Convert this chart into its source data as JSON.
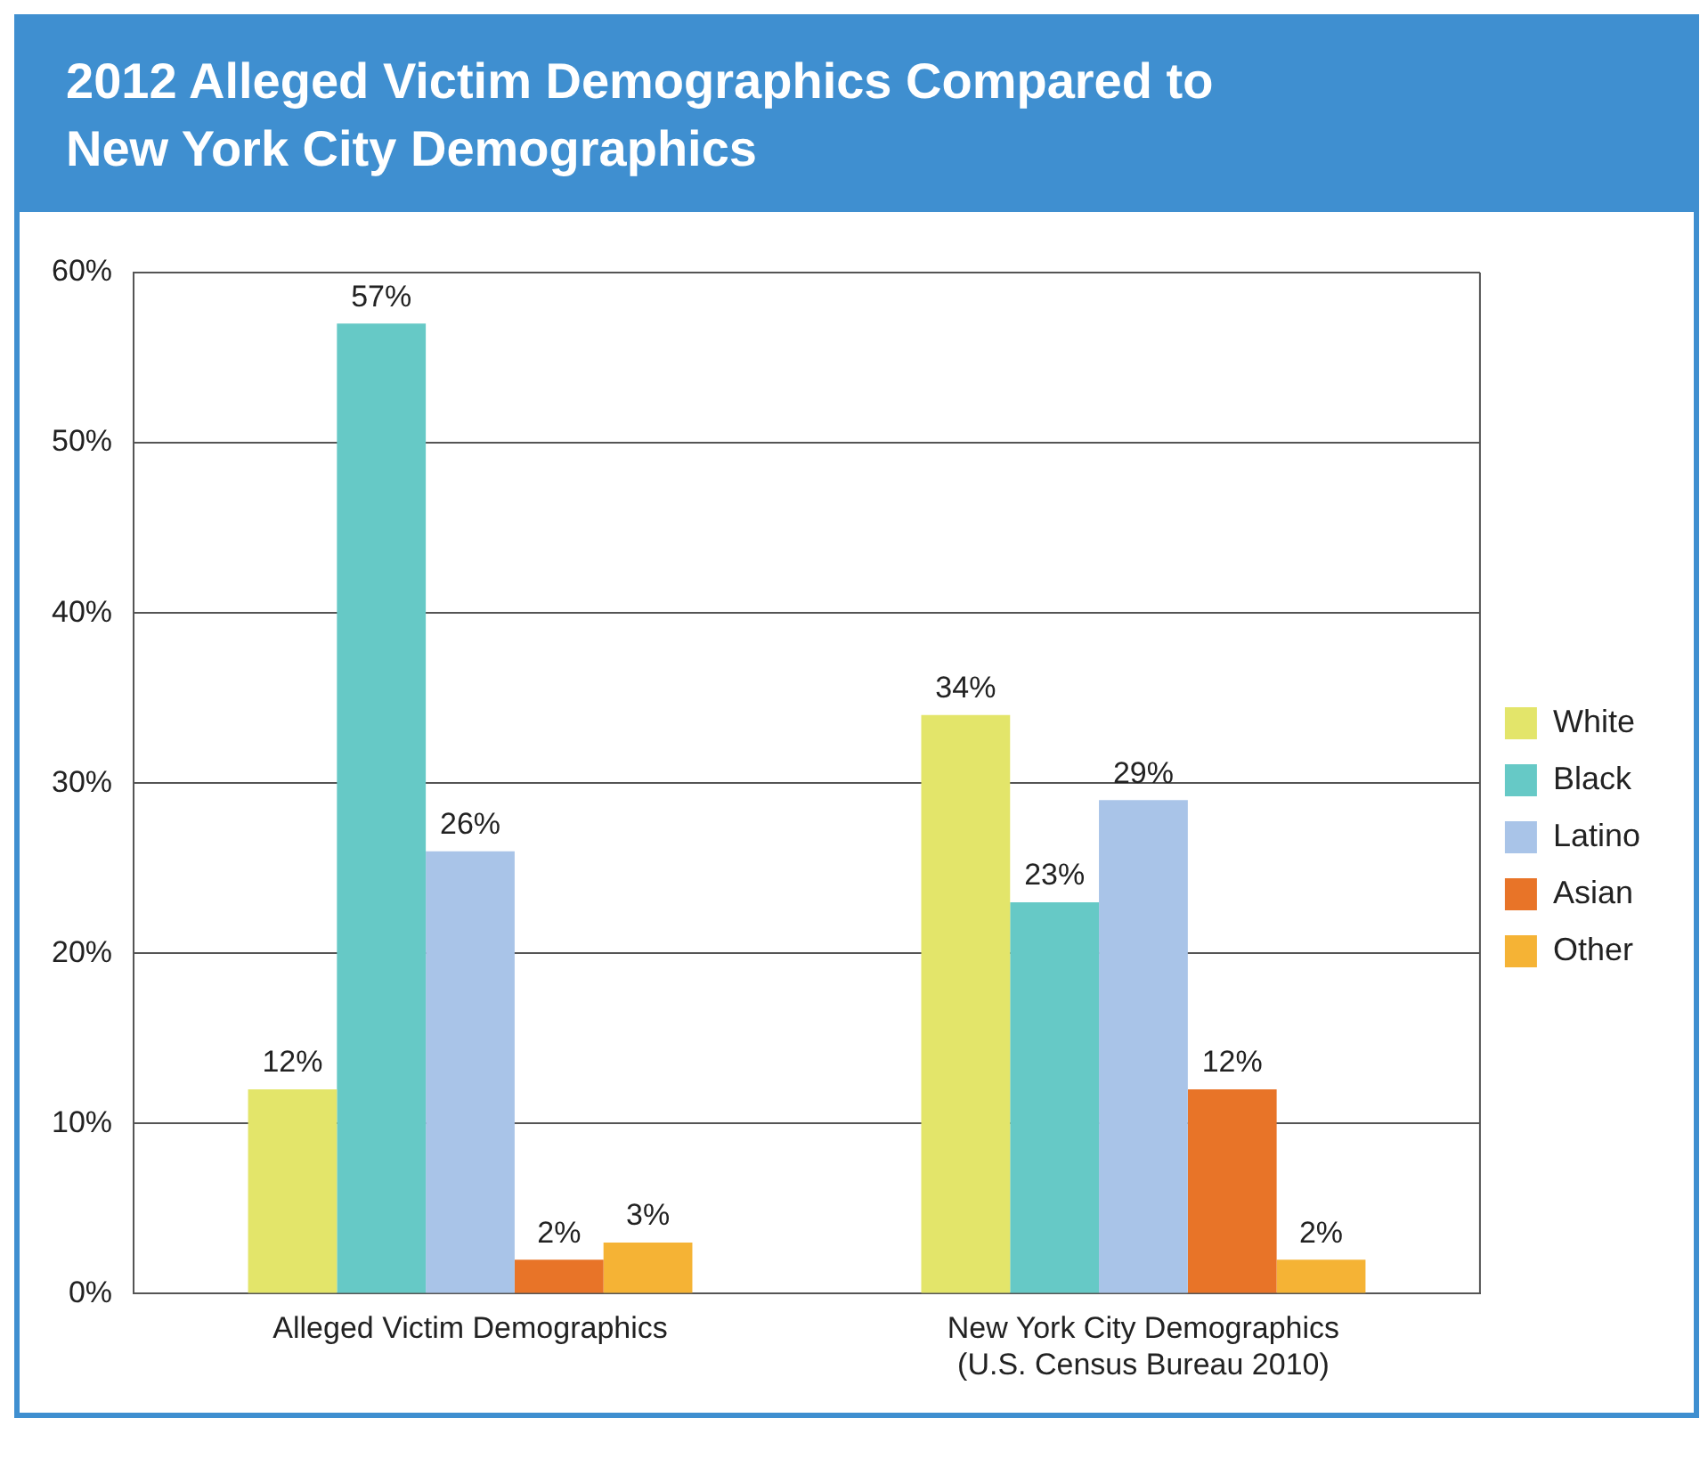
{
  "chart_data": {
    "type": "bar",
    "title": "2012 Alleged Victim Demographics Compared to New York City Demographics",
    "categories": [
      "Alleged Victim Demographics",
      "New York City Demographics\n(U.S. Census Bureau 2010)"
    ],
    "series": [
      {
        "name": "White",
        "color": "#e3e56a",
        "values": [
          12,
          34
        ],
        "value_labels": [
          "12%",
          "34%"
        ]
      },
      {
        "name": "Black",
        "color": "#66c9c6",
        "values": [
          57,
          23
        ],
        "value_labels": [
          "57%",
          "23%"
        ]
      },
      {
        "name": "Latino",
        "color": "#a9c4e8",
        "values": [
          26,
          29
        ],
        "value_labels": [
          "26%",
          "29%"
        ]
      },
      {
        "name": "Asian",
        "color": "#e87428",
        "values": [
          2,
          12
        ],
        "value_labels": [
          "2%",
          "12%"
        ]
      },
      {
        "name": "Other",
        "color": "#f5b335",
        "values": [
          3,
          2
        ],
        "value_labels": [
          "3%",
          "2%"
        ]
      }
    ],
    "ylim": [
      0,
      60
    ],
    "yticks": [
      {
        "value": 0,
        "label": "0%"
      },
      {
        "value": 10,
        "label": "10%"
      },
      {
        "value": 20,
        "label": "20%"
      },
      {
        "value": 30,
        "label": "30%"
      },
      {
        "value": 40,
        "label": "40%"
      },
      {
        "value": 50,
        "label": "50%"
      },
      {
        "value": 60,
        "label": "60%"
      }
    ],
    "grid": "y",
    "legend": "right"
  }
}
